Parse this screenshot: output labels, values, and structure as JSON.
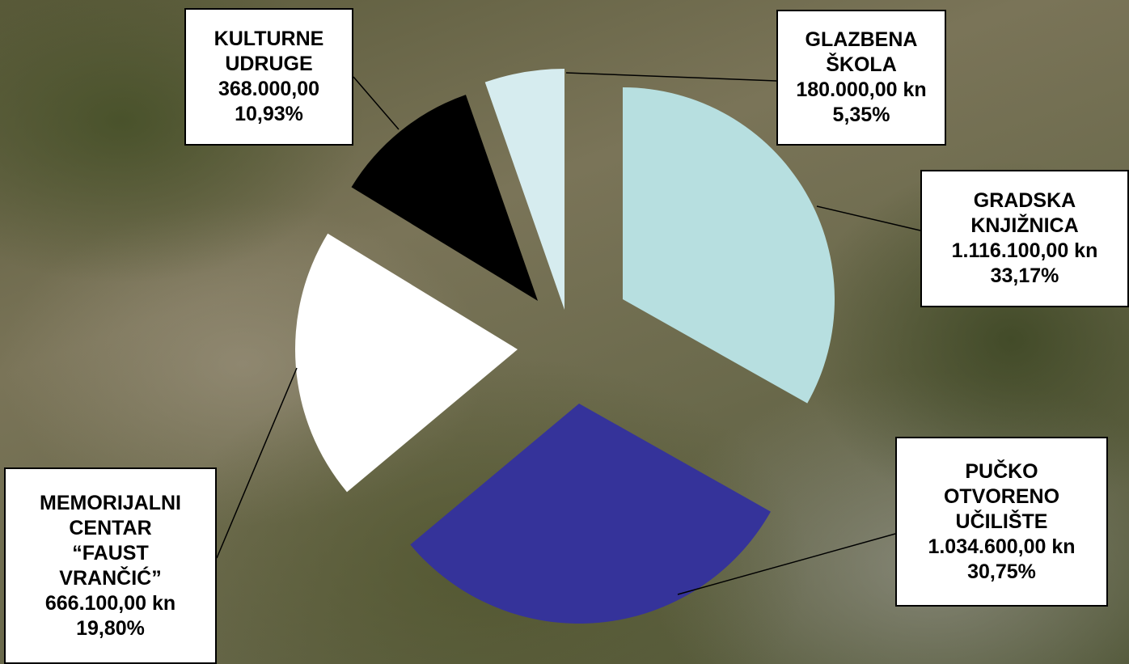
{
  "chart_data": {
    "type": "pie",
    "categories": [
      "GRADSKA\nKNJIŽNICA",
      "PUČKO\nOTVORENO\nUČILIŠTE",
      "MEMORIJALNI\nCENTAR\n“FAUST\nVRANČIĆ”",
      "KULTURNE\nUDRUGE",
      "GLAZBENA\nŠKOLA"
    ],
    "values": [
      33.17,
      30.75,
      19.8,
      10.93,
      5.35
    ],
    "value_labels": [
      "33,17%",
      "30,75%",
      "19,80%",
      "10,93%",
      "5,35%"
    ],
    "amounts": [
      1116100,
      1034600,
      666100,
      368000,
      180000
    ],
    "amount_labels": [
      "1.116.100,00 kn",
      "1.034.600,00 kn",
      "666.100,00 kn",
      "368.000,00",
      "180.000,00 kn"
    ],
    "colors": [
      "#b7dfe0",
      "#35339a",
      "#ffffff",
      "#000000",
      "#d6ecef"
    ]
  }
}
